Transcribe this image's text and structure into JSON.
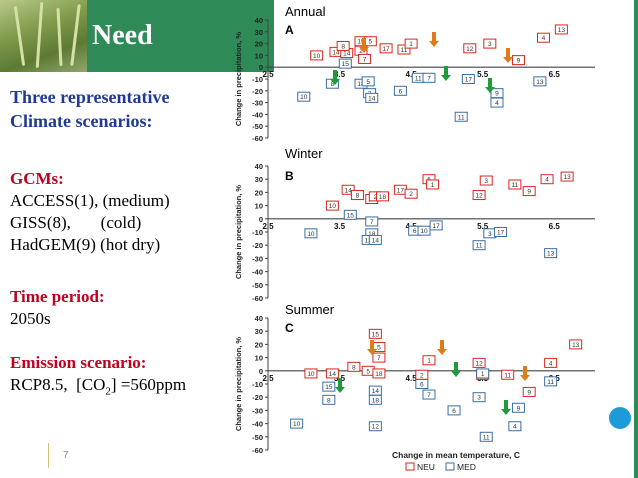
{
  "header": {
    "title": "Need"
  },
  "left": {
    "heading1": "Three representative",
    "heading2": "Climate scenarios:",
    "gcms_label": "GCMs:",
    "gcm1": "ACCESS(1), (medium)",
    "gcm2": "GISS(8),       (cold)",
    "gcm3": "HadGEM(9) (hot dry)",
    "period_label": "Time period:",
    "period_value": "2050s",
    "emission_label": "Emission scenario:",
    "emission_value_pre": "RCP8.5,  [CO",
    "emission_sub": "2",
    "emission_value_post": "] =560ppm"
  },
  "footer": {
    "slide_number": "7"
  },
  "chart_data": [
    {
      "type": "scatter",
      "title": "Annual",
      "panel_letter": "A",
      "ylabel": "Change in precipitation, %",
      "ylim": [
        -60,
        40
      ],
      "yticks": [
        40,
        30,
        20,
        10,
        0,
        -10,
        -20,
        -30,
        -40,
        -50,
        -60
      ],
      "xticks": [
        "2.5",
        "3.5",
        "4.5",
        "5.5",
        "6.5"
      ],
      "xlim": [
        2.5,
        7
      ],
      "series": [
        {
          "name": "NEU",
          "points": [
            {
              "x": 3.18,
              "y": 10,
              "label": "10"
            },
            {
              "x": 3.45,
              "y": 13,
              "label": "14"
            },
            {
              "x": 3.6,
              "y": 12,
              "label": "14"
            },
            {
              "x": 3.55,
              "y": 18,
              "label": "8"
            },
            {
              "x": 3.8,
              "y": 22,
              "label": "15"
            },
            {
              "x": 3.93,
              "y": 22,
              "label": "5"
            },
            {
              "x": 3.8,
              "y": 14,
              "label": "2"
            },
            {
              "x": 3.85,
              "y": 7,
              "label": "7"
            },
            {
              "x": 4.15,
              "y": 16,
              "label": "17"
            },
            {
              "x": 4.4,
              "y": 15,
              "label": "11"
            },
            {
              "x": 4.5,
              "y": 20,
              "label": "1"
            },
            {
              "x": 5.32,
              "y": 16,
              "label": "12"
            },
            {
              "x": 5.6,
              "y": 20,
              "label": "3"
            },
            {
              "x": 6.0,
              "y": 6,
              "label": "9"
            },
            {
              "x": 6.35,
              "y": 25,
              "label": "4"
            },
            {
              "x": 6.6,
              "y": 32,
              "label": "13"
            }
          ]
        },
        {
          "name": "MED",
          "points": [
            {
              "x": 3.0,
              "y": -25,
              "label": "10"
            },
            {
              "x": 3.4,
              "y": -14,
              "label": "8"
            },
            {
              "x": 3.58,
              "y": 3,
              "label": "15"
            },
            {
              "x": 3.8,
              "y": -14,
              "label": "18"
            },
            {
              "x": 3.9,
              "y": -12,
              "label": "5"
            },
            {
              "x": 3.92,
              "y": -22,
              "label": "2"
            },
            {
              "x": 3.95,
              "y": -26,
              "label": "14"
            },
            {
              "x": 4.6,
              "y": -9,
              "label": "11"
            },
            {
              "x": 4.35,
              "y": -20,
              "label": "6"
            },
            {
              "x": 4.75,
              "y": -9,
              "label": "7"
            },
            {
              "x": 5.3,
              "y": -10,
              "label": "17"
            },
            {
              "x": 5.2,
              "y": -42,
              "label": "11"
            },
            {
              "x": 5.7,
              "y": -22,
              "label": "9"
            },
            {
              "x": 5.7,
              "y": -30,
              "label": "4"
            },
            {
              "x": 6.3,
              "y": -12,
              "label": "13"
            }
          ]
        }
      ]
    },
    {
      "type": "scatter",
      "title": "Winter",
      "panel_letter": "B",
      "ylabel": "Change in precipitation, %",
      "ylim": [
        -60,
        40
      ],
      "yticks": [
        40,
        30,
        20,
        10,
        0,
        -10,
        -20,
        -30,
        -40,
        -50,
        -60
      ],
      "xticks": [
        "2.5",
        "3.5",
        "4.5",
        "5.5",
        "6.5"
      ],
      "xlim": [
        2.5,
        7
      ],
      "series": [
        {
          "name": "NEU",
          "points": [
            {
              "x": 3.4,
              "y": 10,
              "label": "10"
            },
            {
              "x": 3.62,
              "y": 22,
              "label": "14"
            },
            {
              "x": 3.75,
              "y": 18,
              "label": "8"
            },
            {
              "x": 3.95,
              "y": 15,
              "label": "15"
            },
            {
              "x": 4.0,
              "y": 17,
              "label": "2"
            },
            {
              "x": 4.1,
              "y": 17,
              "label": "18"
            },
            {
              "x": 4.35,
              "y": 22,
              "label": "17"
            },
            {
              "x": 4.5,
              "y": 19,
              "label": "2"
            },
            {
              "x": 4.75,
              "y": 30,
              "label": "6"
            },
            {
              "x": 4.8,
              "y": 26,
              "label": "1"
            },
            {
              "x": 5.45,
              "y": 18,
              "label": "12"
            },
            {
              "x": 5.55,
              "y": 29,
              "label": "3"
            },
            {
              "x": 5.95,
              "y": 26,
              "label": "11"
            },
            {
              "x": 6.15,
              "y": 21,
              "label": "9"
            },
            {
              "x": 6.4,
              "y": 30,
              "label": "4"
            },
            {
              "x": 6.68,
              "y": 32,
              "label": "13"
            }
          ]
        },
        {
          "name": "MED",
          "points": [
            {
              "x": 3.1,
              "y": -11,
              "label": "10"
            },
            {
              "x": 3.65,
              "y": 3,
              "label": "15"
            },
            {
              "x": 3.95,
              "y": -2,
              "label": "7"
            },
            {
              "x": 3.95,
              "y": -11,
              "label": "18"
            },
            {
              "x": 3.9,
              "y": -16,
              "label": "12"
            },
            {
              "x": 4.0,
              "y": -16,
              "label": "14"
            },
            {
              "x": 4.55,
              "y": -9,
              "label": "6"
            },
            {
              "x": 4.68,
              "y": -9,
              "label": "10"
            },
            {
              "x": 4.85,
              "y": -5,
              "label": "17"
            },
            {
              "x": 5.45,
              "y": -20,
              "label": "11"
            },
            {
              "x": 5.6,
              "y": -11,
              "label": "3"
            },
            {
              "x": 5.75,
              "y": -10,
              "label": "17"
            },
            {
              "x": 6.45,
              "y": -26,
              "label": "13"
            }
          ]
        }
      ]
    },
    {
      "type": "scatter",
      "title": "Summer",
      "panel_letter": "C",
      "ylabel": "Change in precipitation, %",
      "xlabel": "Change in mean temperature, C",
      "ylim": [
        -60,
        40
      ],
      "yticks": [
        40,
        30,
        20,
        10,
        0,
        -10,
        -20,
        -30,
        -40,
        -50,
        -60
      ],
      "xticks": [
        "2.5",
        "3.5",
        "4.5",
        "5.5",
        "6.5"
      ],
      "xlim": [
        2.5,
        7
      ],
      "series": [
        {
          "name": "NEU",
          "points": [
            {
              "x": 3.1,
              "y": -2,
              "label": "10"
            },
            {
              "x": 3.4,
              "y": -2,
              "label": "14"
            },
            {
              "x": 3.7,
              "y": 3,
              "label": "8"
            },
            {
              "x": 3.9,
              "y": 0,
              "label": "5"
            },
            {
              "x": 4.05,
              "y": -2,
              "label": "18"
            },
            {
              "x": 4.0,
              "y": 28,
              "label": "15"
            },
            {
              "x": 4.05,
              "y": 18,
              "label": "5"
            },
            {
              "x": 4.05,
              "y": 10,
              "label": "7"
            },
            {
              "x": 4.65,
              "y": -3,
              "label": "2"
            },
            {
              "x": 4.75,
              "y": 8,
              "label": "1"
            },
            {
              "x": 5.45,
              "y": 6,
              "label": "12"
            },
            {
              "x": 5.5,
              "y": -3,
              "label": "17"
            },
            {
              "x": 5.85,
              "y": -3,
              "label": "11"
            },
            {
              "x": 6.15,
              "y": -16,
              "label": "9"
            },
            {
              "x": 6.45,
              "y": 6,
              "label": "4"
            },
            {
              "x": 6.8,
              "y": 20,
              "label": "13"
            }
          ]
        },
        {
          "name": "MED",
          "points": [
            {
              "x": 3.35,
              "y": -12,
              "label": "15"
            },
            {
              "x": 3.35,
              "y": -22,
              "label": "8"
            },
            {
              "x": 4.0,
              "y": -15,
              "label": "14"
            },
            {
              "x": 4.0,
              "y": -22,
              "label": "18"
            },
            {
              "x": 4.0,
              "y": -42,
              "label": "12"
            },
            {
              "x": 4.65,
              "y": -10,
              "label": "6"
            },
            {
              "x": 4.75,
              "y": -18,
              "label": "7"
            },
            {
              "x": 5.1,
              "y": -30,
              "label": "6"
            },
            {
              "x": 5.5,
              "y": -2,
              "label": "1"
            },
            {
              "x": 5.45,
              "y": -20,
              "label": "3"
            },
            {
              "x": 6.0,
              "y": -28,
              "label": "9"
            },
            {
              "x": 5.95,
              "y": -42,
              "label": "4"
            },
            {
              "x": 5.55,
              "y": -50,
              "label": "11"
            },
            {
              "x": 2.9,
              "y": -40,
              "label": "10"
            },
            {
              "x": 6.45,
              "y": -8,
              "label": "11"
            }
          ]
        }
      ]
    }
  ],
  "legend": {
    "items": [
      {
        "name": "NEU",
        "color": "#d9261c"
      },
      {
        "name": "MED",
        "color": "#3a6ea5"
      }
    ]
  },
  "colors": {
    "header": "#2e8b57",
    "neu": "#d9261c",
    "med": "#3a6ea5",
    "orange_arrow": "#e07b1a",
    "green_arrow": "#1f9a3c",
    "text_blue": "#1f3a93",
    "text_red": "#c0001e"
  }
}
